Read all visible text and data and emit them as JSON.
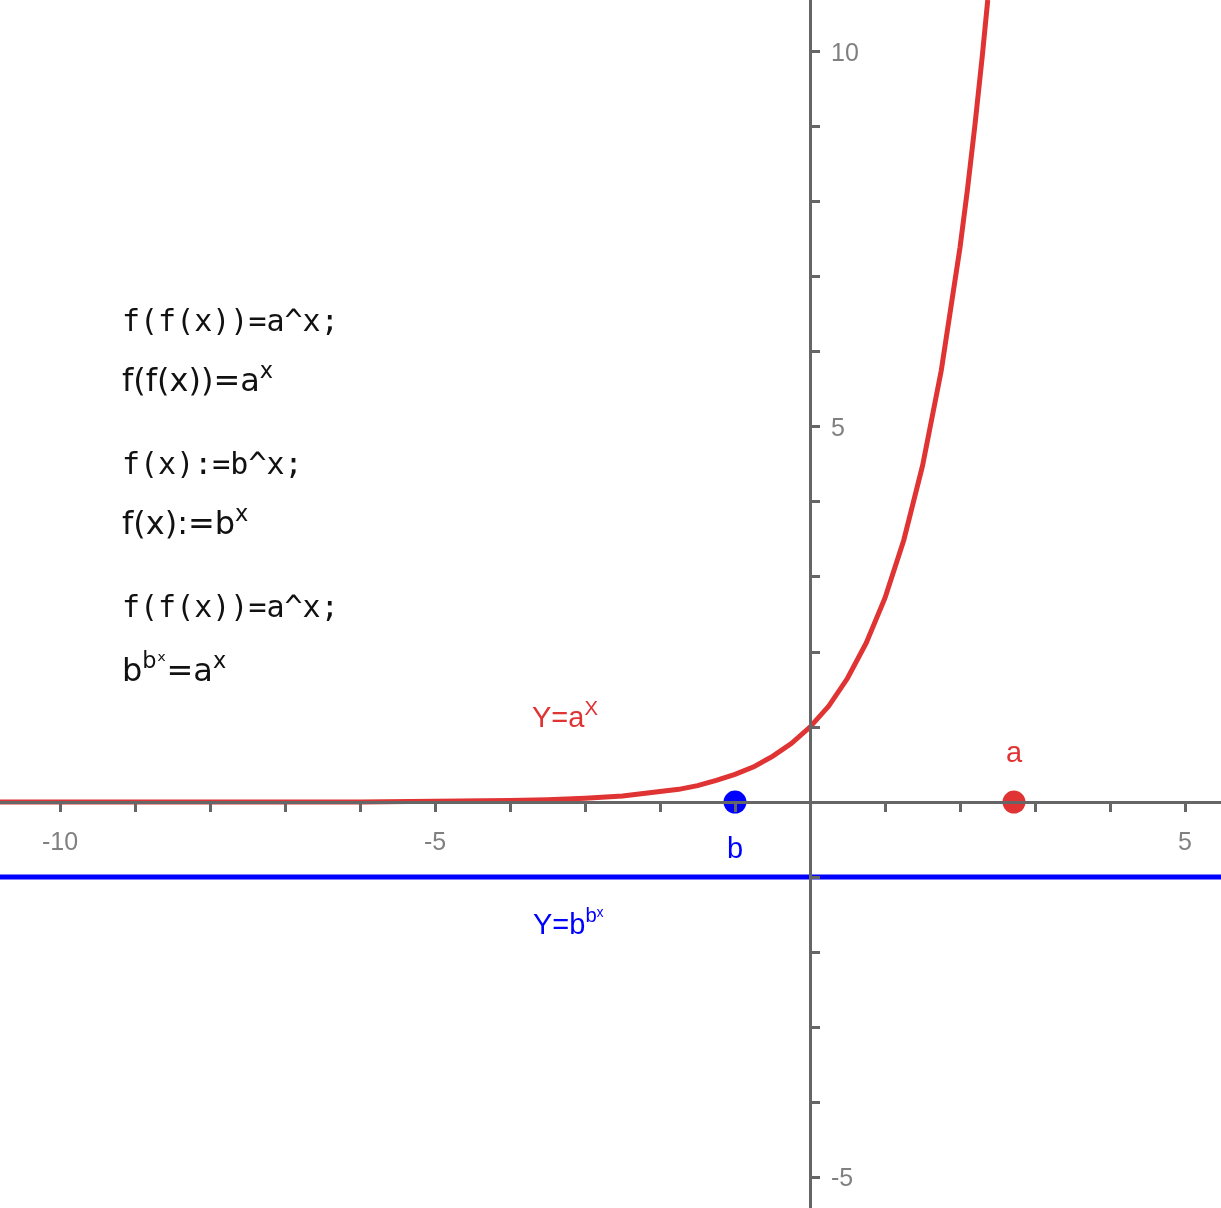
{
  "chart_data": {
    "type": "line",
    "annotations": [
      "f(f(x))=a^x;",
      "f(f(x))=a$^{x}$",
      "f(x):=b^x;",
      "f(x):=b$^{x}$",
      "f(f(x))=a^x;",
      "b$^{bˣ}$=a$^{x}$"
    ],
    "series": [
      {
        "name": "Y=a$^{X}$",
        "color": "#e03333",
        "x": [
          -10.8,
          -9,
          -8,
          -7,
          -6,
          -5,
          -4,
          -3.5,
          -3,
          -2.5,
          -2,
          -1.75,
          -1.5,
          -1.25,
          -1,
          -0.75,
          -0.5,
          -0.25,
          0,
          0.25,
          0.5,
          0.75,
          1,
          1.25,
          1.5,
          1.75,
          2,
          2.1,
          2.2,
          2.3,
          2.37
        ],
        "values": [
          0,
          0,
          0,
          0,
          0,
          0.01,
          0.02,
          0.03,
          0.05,
          0.08,
          0.14,
          0.17,
          0.22,
          0.29,
          0.37,
          0.47,
          0.61,
          0.78,
          1,
          1.28,
          1.65,
          2.12,
          2.72,
          3.49,
          4.48,
          5.75,
          7.39,
          8.17,
          9.03,
          9.97,
          10.69
        ]
      },
      {
        "name": "Y=b$^{bˣ}$",
        "color": "#0000ff",
        "x": [
          -10.8,
          5.48
        ],
        "values": [
          -1,
          -1
        ]
      },
      {
        "name": "a",
        "type": "scatter",
        "marker": "circle",
        "color": "#e03333",
        "x": [
          2.72
        ],
        "values": [
          0
        ]
      },
      {
        "name": "b",
        "type": "scatter",
        "marker": "circle",
        "color": "#0000ff",
        "x": [
          -1
        ],
        "values": [
          0
        ]
      }
    ],
    "xlim": [
      -10.8,
      5.48
    ],
    "ylim": [
      -5.41,
      10.69
    ],
    "xticks": [
      -10,
      {
        "value": -9,
        "label": null
      },
      {
        "value": -8,
        "label": null
      },
      {
        "value": -7,
        "label": null
      },
      {
        "value": -6,
        "label": null
      },
      -5,
      {
        "value": -4,
        "label": null
      },
      {
        "value": -3,
        "label": null
      },
      {
        "value": -2,
        "label": null
      },
      {
        "value": -1,
        "label": null
      },
      {
        "value": 1,
        "label": null
      },
      {
        "value": 2,
        "label": null
      },
      {
        "value": 3,
        "label": null
      },
      {
        "value": 4,
        "label": null
      },
      5
    ],
    "yticks": [
      -5,
      {
        "value": -4,
        "label": null
      },
      {
        "value": -3,
        "label": null
      },
      {
        "value": -2,
        "label": null
      },
      {
        "value": -1,
        "label": null
      },
      {
        "value": 1,
        "label": null
      },
      {
        "value": 2,
        "label": null
      },
      {
        "value": 3,
        "label": null
      },
      {
        "value": 4,
        "label": null
      },
      5,
      {
        "value": 6,
        "label": null
      },
      {
        "value": 7,
        "label": null
      },
      {
        "value": 8,
        "label": null
      },
      {
        "value": 9,
        "label": null
      },
      10
    ],
    "grid": false,
    "legend": false
  }
}
